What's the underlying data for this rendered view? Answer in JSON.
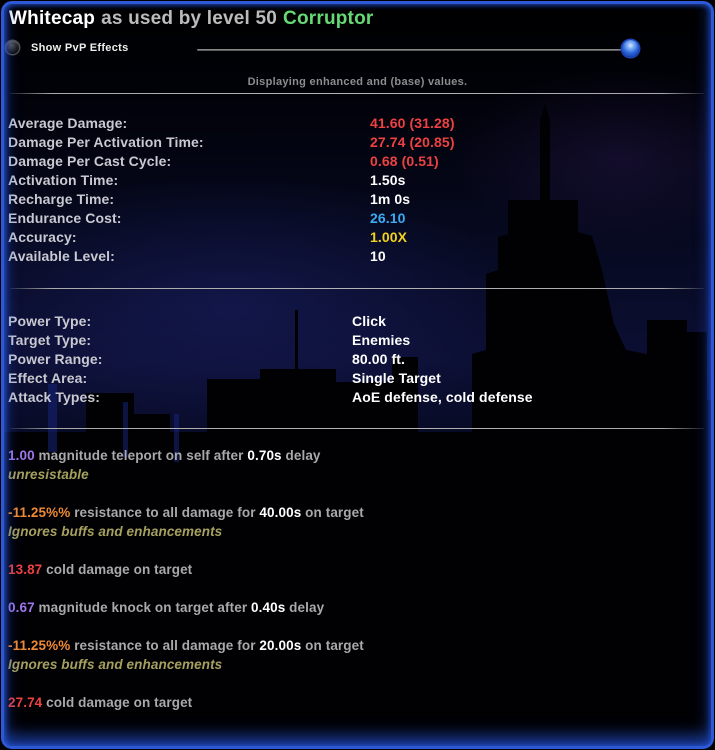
{
  "palette": {
    "red": "#ee4141",
    "blue": "#3cabf2",
    "yellow": "#f2d21d",
    "white": "#ffffff",
    "purple": "#9e77ea",
    "orange": "#f08a34",
    "gray": "#a9a9a9",
    "olive": "#a6a05f",
    "label_gray": "#c9c9d1",
    "green": "#66d975",
    "border_blue": "#2d59d6"
  },
  "header": {
    "power_name": "Whitecap",
    "subtitle": "as used by level 50",
    "archetype": "Corruptor"
  },
  "controls": {
    "pvp_toggle_label": "Show PvP Effects",
    "display_note": "Displaying enhanced and (base) values."
  },
  "stats": {
    "rows": [
      {
        "label": "Average Damage:",
        "value": "41.60 (31.28)",
        "color": "red"
      },
      {
        "label": "Damage Per Activation Time:",
        "value": "27.74 (20.85)",
        "color": "red"
      },
      {
        "label": "Damage Per Cast Cycle:",
        "value": "0.68 (0.51)",
        "color": "red"
      },
      {
        "label": "Activation Time:",
        "value": "1.50s",
        "color": "white"
      },
      {
        "label": "Recharge Time:",
        "value": "1m 0s",
        "color": "white"
      },
      {
        "label": "Endurance Cost:",
        "value": "26.10",
        "color": "blue"
      },
      {
        "label": "Accuracy:",
        "value": "1.00X",
        "color": "yellow"
      },
      {
        "label": "Available Level:",
        "value": "10",
        "color": "white"
      }
    ]
  },
  "info": {
    "rows": [
      {
        "label": "Power Type:",
        "value": "Click"
      },
      {
        "label": "Target Type:",
        "value": "Enemies"
      },
      {
        "label": "Power Range:",
        "value": "80.00 ft."
      },
      {
        "label": "Effect Area:",
        "value": "Single Target"
      },
      {
        "label": "Attack Types:",
        "value": "AoE defense, cold defense"
      }
    ]
  },
  "effects": {
    "groups": [
      {
        "segments": [
          {
            "text": "1.00",
            "color": "purple"
          },
          {
            "text": " magnitude teleport on self after ",
            "color": "gray"
          },
          {
            "text": "0.70s",
            "color": "white"
          },
          {
            "text": " delay",
            "color": "gray"
          }
        ],
        "note": "unresistable"
      },
      {
        "segments": [
          {
            "text": "-11.25%%",
            "color": "orange"
          },
          {
            "text": " resistance to all damage for ",
            "color": "gray"
          },
          {
            "text": "40.00s",
            "color": "white"
          },
          {
            "text": " on target",
            "color": "gray"
          }
        ],
        "note": "Ignores buffs and enhancements"
      },
      {
        "segments": [
          {
            "text": "13.87",
            "color": "red"
          },
          {
            "text": " cold damage on target",
            "color": "gray"
          }
        ]
      },
      {
        "segments": [
          {
            "text": "0.67",
            "color": "purple"
          },
          {
            "text": " magnitude knock on target after ",
            "color": "gray"
          },
          {
            "text": "0.40s",
            "color": "white"
          },
          {
            "text": " delay",
            "color": "gray"
          }
        ]
      },
      {
        "segments": [
          {
            "text": "-11.25%%",
            "color": "orange"
          },
          {
            "text": " resistance to all damage for ",
            "color": "gray"
          },
          {
            "text": "20.00s",
            "color": "white"
          },
          {
            "text": " on target",
            "color": "gray"
          }
        ],
        "note": "Ignores buffs and enhancements"
      },
      {
        "segments": [
          {
            "text": "27.74",
            "color": "red"
          },
          {
            "text": " cold damage on target",
            "color": "gray"
          }
        ]
      }
    ]
  }
}
